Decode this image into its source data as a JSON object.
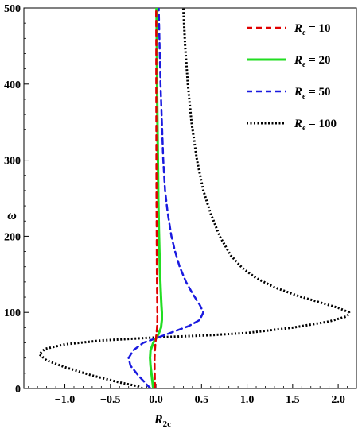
{
  "chart_data": {
    "type": "line",
    "xlabel_main": "R",
    "xlabel_sub": "2c",
    "ylabel": "ω",
    "xlim": [
      -1.45,
      2.2
    ],
    "ylim": [
      0,
      500
    ],
    "xticks": [
      "−1.0",
      "−0.5",
      "0.0",
      "0.5",
      "1.0",
      "1.5",
      "2.0"
    ],
    "xtick_values": [
      -1.0,
      -0.5,
      0.0,
      0.5,
      1.0,
      1.5,
      2.0
    ],
    "yticks": [
      "0",
      "100",
      "200",
      "300",
      "400",
      "500"
    ],
    "ytick_values": [
      0,
      100,
      200,
      300,
      400,
      500
    ],
    "grid": false,
    "legend_placement": "top-right",
    "series": [
      {
        "name": "R_e = 10",
        "legend_main": "R",
        "legend_sub": "e",
        "legend_value": " = 10",
        "color": "#e00000",
        "style": "dashed",
        "points": [
          [
            -0.01,
            0
          ],
          [
            -0.012,
            10
          ],
          [
            -0.014,
            20
          ],
          [
            -0.015,
            30
          ],
          [
            -0.015,
            40
          ],
          [
            -0.012,
            50
          ],
          [
            -0.006,
            60
          ],
          [
            0.0,
            66
          ],
          [
            0.006,
            72
          ],
          [
            0.012,
            80
          ],
          [
            0.015,
            90
          ],
          [
            0.015,
            100
          ],
          [
            0.013,
            120
          ],
          [
            0.011,
            140
          ],
          [
            0.009,
            170
          ],
          [
            0.008,
            200
          ],
          [
            0.006,
            250
          ],
          [
            0.005,
            300
          ],
          [
            0.004,
            350
          ],
          [
            0.003,
            400
          ],
          [
            0.003,
            450
          ],
          [
            0.002,
            500
          ]
        ]
      },
      {
        "name": "R_e = 20",
        "legend_main": "R",
        "legend_sub": "e",
        "legend_value": " = 20",
        "color": "#22dd22",
        "style": "solid",
        "points": [
          [
            -0.03,
            0
          ],
          [
            -0.04,
            10
          ],
          [
            -0.05,
            20
          ],
          [
            -0.06,
            30
          ],
          [
            -0.065,
            40
          ],
          [
            -0.06,
            50
          ],
          [
            -0.03,
            60
          ],
          [
            0.0,
            66
          ],
          [
            0.03,
            72
          ],
          [
            0.055,
            80
          ],
          [
            0.065,
            90
          ],
          [
            0.065,
            100
          ],
          [
            0.06,
            110
          ],
          [
            0.052,
            130
          ],
          [
            0.045,
            150
          ],
          [
            0.038,
            180
          ],
          [
            0.032,
            210
          ],
          [
            0.026,
            250
          ],
          [
            0.021,
            300
          ],
          [
            0.016,
            350
          ],
          [
            0.012,
            400
          ],
          [
            0.009,
            450
          ],
          [
            0.006,
            500
          ]
        ]
      },
      {
        "name": "R_e = 50",
        "legend_main": "R",
        "legend_sub": "e",
        "legend_value": " = 50",
        "color": "#1a1adf",
        "style": "dashed",
        "points": [
          [
            -0.06,
            0
          ],
          [
            -0.1,
            5
          ],
          [
            -0.2,
            18
          ],
          [
            -0.28,
            30
          ],
          [
            -0.3,
            40
          ],
          [
            -0.25,
            50
          ],
          [
            -0.14,
            60
          ],
          [
            0.0,
            66
          ],
          [
            0.18,
            74
          ],
          [
            0.36,
            82
          ],
          [
            0.48,
            90
          ],
          [
            0.52,
            100
          ],
          [
            0.48,
            110
          ],
          [
            0.4,
            125
          ],
          [
            0.33,
            140
          ],
          [
            0.26,
            160
          ],
          [
            0.21,
            180
          ],
          [
            0.17,
            200
          ],
          [
            0.13,
            230
          ],
          [
            0.1,
            260
          ],
          [
            0.08,
            300
          ],
          [
            0.065,
            350
          ],
          [
            0.05,
            400
          ],
          [
            0.04,
            450
          ],
          [
            0.03,
            500
          ]
        ]
      },
      {
        "name": "R_e = 100",
        "legend_main": "R",
        "legend_sub": "e",
        "legend_value": " = 100",
        "color": "#000000",
        "style": "dotted",
        "points": [
          [
            -0.15,
            0
          ],
          [
            -0.2,
            3
          ],
          [
            -0.4,
            8
          ],
          [
            -0.7,
            17
          ],
          [
            -1.0,
            28
          ],
          [
            -1.2,
            37
          ],
          [
            -1.28,
            45
          ],
          [
            -1.22,
            52
          ],
          [
            -1.0,
            58
          ],
          [
            -0.6,
            63
          ],
          [
            0.0,
            67
          ],
          [
            0.6,
            70
          ],
          [
            1.0,
            73
          ],
          [
            1.5,
            80
          ],
          [
            1.9,
            88
          ],
          [
            2.1,
            95
          ],
          [
            2.12,
            100
          ],
          [
            2.0,
            106
          ],
          [
            1.8,
            113
          ],
          [
            1.55,
            122
          ],
          [
            1.3,
            133
          ],
          [
            1.1,
            145
          ],
          [
            0.95,
            158
          ],
          [
            0.82,
            175
          ],
          [
            0.7,
            200
          ],
          [
            0.6,
            230
          ],
          [
            0.52,
            260
          ],
          [
            0.45,
            300
          ],
          [
            0.39,
            350
          ],
          [
            0.35,
            400
          ],
          [
            0.32,
            450
          ],
          [
            0.3,
            500
          ]
        ]
      }
    ]
  }
}
